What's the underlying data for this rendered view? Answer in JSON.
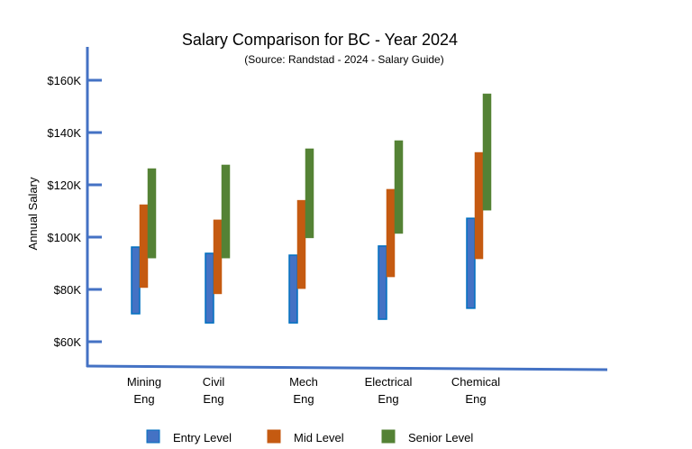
{
  "chart_data": {
    "type": "bar",
    "subtype": "floating-range",
    "title": "Salary Comparison for BC - Year 2024",
    "subtitle": "(Source: Randstad - 2024 - Salary Guide)",
    "xlabel": "",
    "ylabel": "Annual Salary",
    "ylim": [
      55,
      170
    ],
    "yticks": [
      {
        "value": 60,
        "label": "$60K"
      },
      {
        "value": 80,
        "label": "$80K"
      },
      {
        "value": 100,
        "label": "$100K"
      },
      {
        "value": 120,
        "label": "$120K"
      },
      {
        "value": 140,
        "label": "$140K"
      },
      {
        "value": 160,
        "label": "$160K"
      }
    ],
    "categories": [
      [
        "Mining",
        "Eng"
      ],
      [
        "Civil",
        "Eng"
      ],
      [
        "Mech",
        "Eng"
      ],
      [
        "Electrical",
        "Eng"
      ],
      [
        "Chemical",
        "Eng"
      ]
    ],
    "series": [
      {
        "name": "Entry Level",
        "color": "#4472C4",
        "border": "#0070C0",
        "low": [
          70.7,
          67.2,
          67.2,
          68.6,
          72.8
        ],
        "high": [
          96.2,
          93.8,
          93.1,
          96.6,
          107.2
        ]
      },
      {
        "name": "Mid Level",
        "color": "#C55A11",
        "border": "#C55A11",
        "low": [
          80.7,
          78.3,
          80.3,
          84.8,
          91.7
        ],
        "high": [
          112.4,
          106.6,
          114.1,
          118.3,
          132.4
        ]
      },
      {
        "name": "Senior Level",
        "color": "#548235",
        "border": "#548235",
        "low": [
          92.0,
          92.0,
          99.7,
          101.4,
          110.3
        ],
        "high": [
          126.2,
          127.6,
          133.8,
          136.9,
          154.8
        ]
      }
    ],
    "grid": false,
    "legend": "bottom",
    "axis_color": "#4472C4"
  }
}
